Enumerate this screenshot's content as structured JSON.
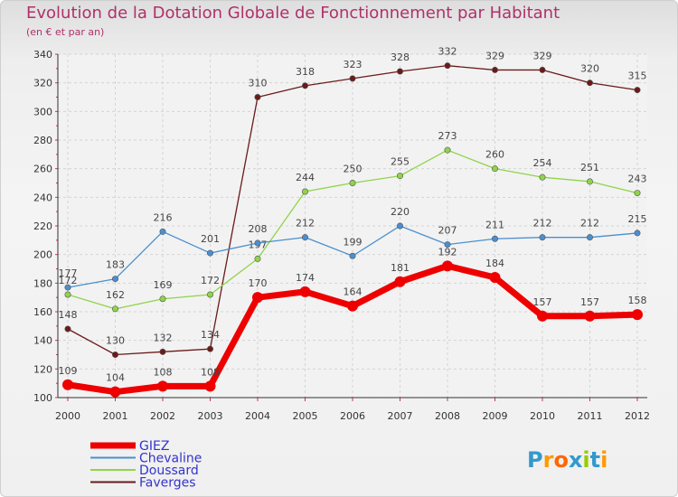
{
  "chart_data": {
    "type": "line",
    "title": "Evolution de la Dotation Globale de Fonctionnement par Habitant",
    "subtitle": "(en € et par an)",
    "xlabel": "",
    "ylabel": "",
    "categories": [
      "2000",
      "2001",
      "2002",
      "2003",
      "2004",
      "2005",
      "2006",
      "2007",
      "2008",
      "2009",
      "2010",
      "2011",
      "2012"
    ],
    "ylim": [
      100,
      340
    ],
    "yticks": [
      100,
      120,
      140,
      160,
      180,
      200,
      220,
      240,
      260,
      280,
      300,
      320,
      340
    ],
    "grid": true,
    "legend_position": "bottom-left",
    "series": [
      {
        "name": "Faverges",
        "color": "#6b1a1a",
        "values": [
          148,
          130,
          132,
          134,
          310,
          318,
          323,
          328,
          332,
          329,
          329,
          320,
          315
        ]
      },
      {
        "name": "Doussard",
        "color": "#8fd44a",
        "values": [
          172,
          162,
          169,
          172,
          197,
          244,
          250,
          255,
          273,
          260,
          254,
          251,
          243
        ]
      },
      {
        "name": "Chevaline",
        "color": "#4a8fcf",
        "values": [
          177,
          183,
          216,
          201,
          208,
          212,
          199,
          220,
          207,
          211,
          212,
          212,
          215
        ]
      },
      {
        "name": "GIEZ",
        "color": "#ee0000",
        "values": [
          109,
          104,
          108,
          108,
          170,
          174,
          164,
          181,
          192,
          184,
          157,
          157,
          158
        ]
      }
    ],
    "legend_order": [
      "GIEZ",
      "Chevaline",
      "Doussard",
      "Faverges"
    ]
  },
  "logo": {
    "text": "Proxiti",
    "letters": [
      "P",
      "r",
      "o",
      "x",
      "i",
      "t",
      "i"
    ],
    "colors": [
      "#3399cc",
      "#ff9900",
      "#ff6600",
      "#3399cc",
      "#99cc00",
      "#3399cc",
      "#ff9900"
    ]
  }
}
